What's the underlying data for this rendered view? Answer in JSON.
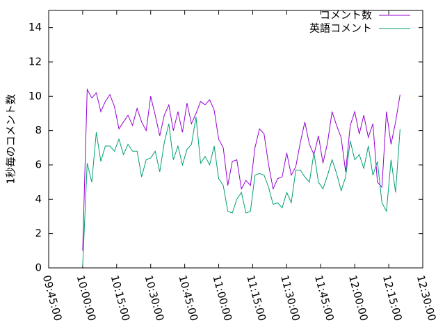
{
  "chart_data": {
    "type": "line",
    "y_label": "1秒毎のコメント数",
    "x": [
      "10:00:00",
      "10:02:00",
      "10:04:00",
      "10:06:00",
      "10:08:00",
      "10:10:00",
      "10:12:00",
      "10:14:00",
      "10:16:00",
      "10:18:00",
      "10:20:00",
      "10:22:00",
      "10:24:00",
      "10:26:00",
      "10:28:00",
      "10:30:00",
      "10:32:00",
      "10:34:00",
      "10:36:00",
      "10:38:00",
      "10:40:00",
      "10:42:00",
      "10:44:00",
      "10:46:00",
      "10:48:00",
      "10:50:00",
      "10:52:00",
      "10:54:00",
      "10:56:00",
      "10:58:00",
      "11:00:00",
      "11:02:00",
      "11:04:00",
      "11:06:00",
      "11:08:00",
      "11:10:00",
      "11:12:00",
      "11:14:00",
      "11:16:00",
      "11:18:00",
      "11:20:00",
      "11:22:00",
      "11:24:00",
      "11:26:00",
      "11:28:00",
      "11:30:00",
      "11:32:00",
      "11:34:00",
      "11:36:00",
      "11:38:00",
      "11:40:00",
      "11:42:00",
      "11:44:00",
      "11:46:00",
      "11:48:00",
      "11:50:00",
      "11:52:00",
      "11:54:00",
      "11:56:00",
      "11:58:00",
      "12:00:00",
      "12:02:00",
      "12:04:00",
      "12:06:00",
      "12:08:00",
      "12:10:00",
      "12:12:00",
      "12:14:00",
      "12:16:00",
      "12:18:00",
      "12:20:00"
    ],
    "series": [
      {
        "name": "コメント数",
        "color": "#9400d3",
        "values": [
          1.0,
          10.4,
          9.9,
          10.2,
          9.1,
          9.7,
          10.1,
          9.4,
          8.1,
          8.5,
          8.9,
          8.3,
          9.3,
          8.5,
          8.0,
          10.0,
          8.9,
          7.7,
          8.9,
          9.5,
          8.0,
          9.1,
          7.9,
          9.6,
          8.4,
          9.0,
          9.7,
          9.5,
          9.8,
          9.2,
          7.5,
          7.0,
          4.8,
          6.2,
          6.3,
          4.6,
          5.1,
          4.8,
          7.0,
          8.1,
          7.8,
          6.0,
          4.6,
          5.2,
          5.3,
          6.7,
          5.4,
          5.9,
          7.3,
          8.5,
          7.2,
          6.6,
          7.7,
          6.1,
          7.3,
          9.1,
          8.3,
          7.6,
          5.6,
          8.3,
          9.1,
          7.8,
          8.9,
          7.6,
          8.4,
          5.0,
          4.7,
          9.1,
          7.2,
          8.5,
          10.1
        ]
      },
      {
        "name": "英語コメント",
        "color": "#009e73",
        "values": [
          0.1,
          6.1,
          5.0,
          7.9,
          6.2,
          7.1,
          7.1,
          6.8,
          7.5,
          6.6,
          7.2,
          6.8,
          6.8,
          5.3,
          6.3,
          6.4,
          6.8,
          5.6,
          7.3,
          8.4,
          6.3,
          7.1,
          6.0,
          6.9,
          7.2,
          8.8,
          6.1,
          6.5,
          6.0,
          7.1,
          5.2,
          4.8,
          3.3,
          3.2,
          4.0,
          4.4,
          3.2,
          3.3,
          5.4,
          5.5,
          5.4,
          4.7,
          3.7,
          3.8,
          3.5,
          4.4,
          3.8,
          5.7,
          5.7,
          5.3,
          5.0,
          6.7,
          5.0,
          4.6,
          5.4,
          6.3,
          5.5,
          4.5,
          5.3,
          7.4,
          6.3,
          6.6,
          5.8,
          7.1,
          5.4,
          6.2,
          3.8,
          3.3,
          6.3,
          4.4,
          8.1
        ]
      }
    ],
    "xlim": [
      "09:45:00",
      "12:30:00"
    ],
    "xticks": [
      "09:45:00",
      "10:00:00",
      "10:15:00",
      "10:30:00",
      "10:45:00",
      "11:00:00",
      "11:15:00",
      "11:30:00",
      "11:45:00",
      "12:00:00",
      "12:15:00",
      "12:30:00"
    ],
    "ylim": [
      0,
      15
    ],
    "yticks": [
      0,
      2,
      4,
      6,
      8,
      10,
      12,
      14
    ],
    "grid": false,
    "legend": "top-right"
  }
}
